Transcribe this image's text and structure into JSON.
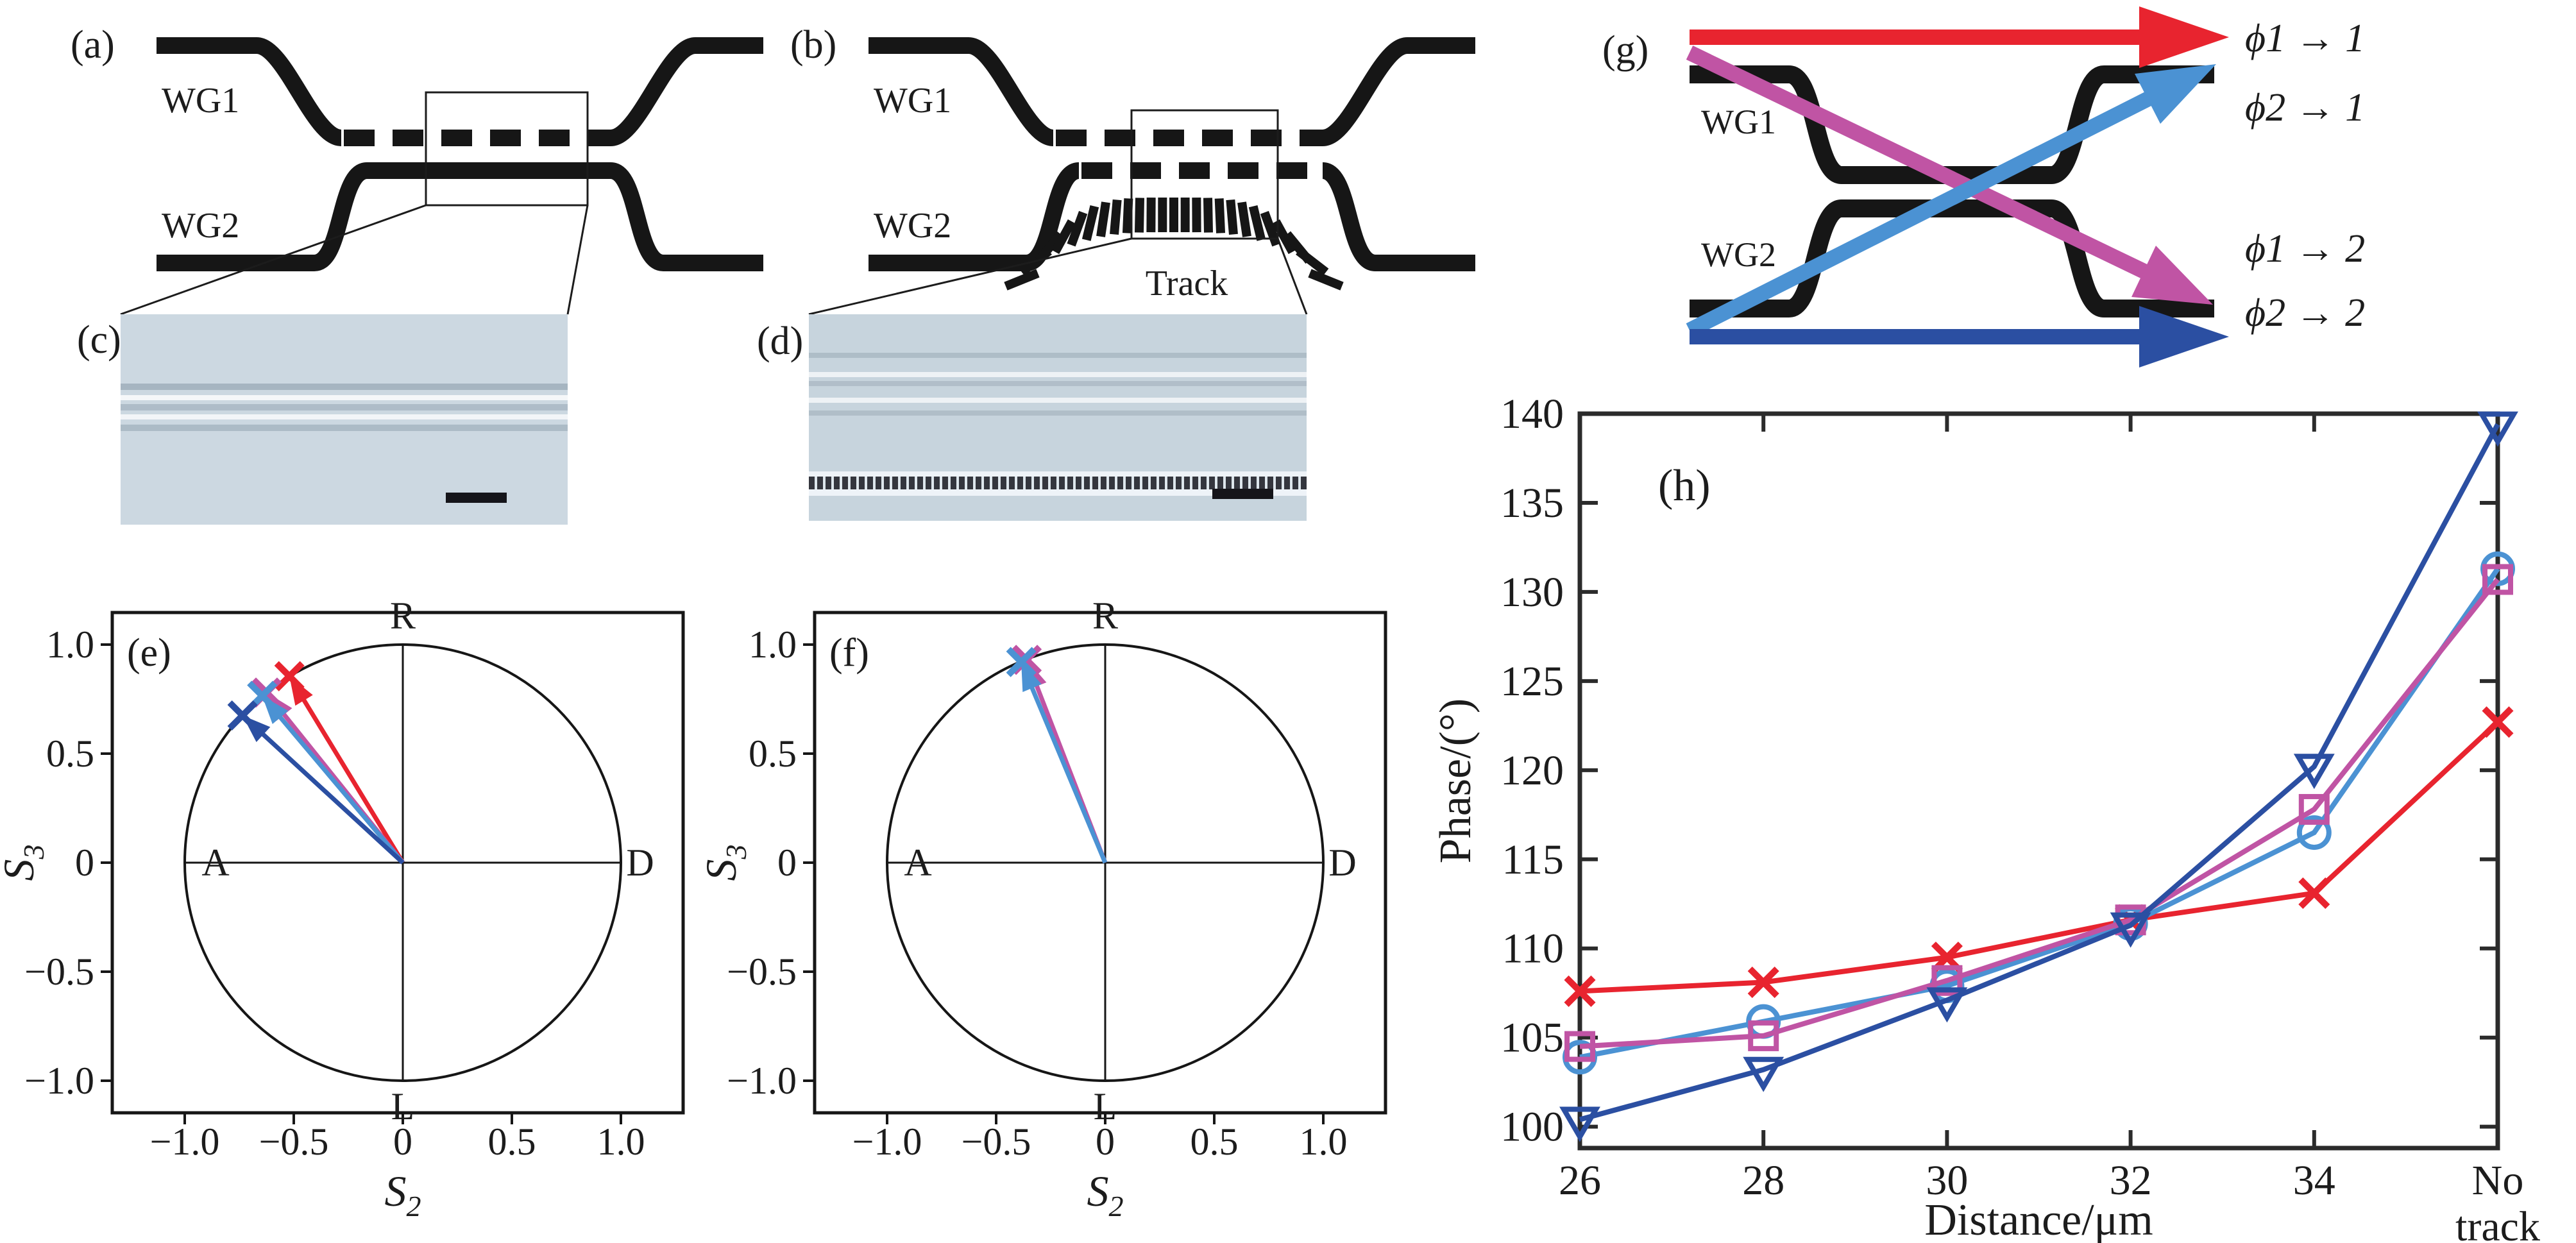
{
  "figure": {
    "type": "multi-panel scientific figure",
    "panel_letters": [
      "(a)",
      "(b)",
      "(c)",
      "(d)",
      "(e)",
      "(f)",
      "(g)",
      "(h)"
    ]
  },
  "colors": {
    "red": "#e8242f",
    "light_blue": "#4b92d3",
    "magenta": "#c054a4",
    "dark_blue": "#2b4fa2",
    "ink": "#161616",
    "frame": "#2b2b2b",
    "micrograph_c": "#ccd8e1",
    "micrograph_d": "#c7d4dd"
  },
  "panel_a": {
    "label": "(a)",
    "wg1": "WG1",
    "wg2": "WG2"
  },
  "panel_b": {
    "label": "(b)",
    "wg1": "WG1",
    "wg2": "WG2",
    "track_label": "Track"
  },
  "panel_c": {
    "label": "(c)"
  },
  "panel_d": {
    "label": "(d)"
  },
  "panel_g": {
    "label": "(g)",
    "wg1": "WG1",
    "wg2": "WG2",
    "flows": [
      {
        "label": "ϕ1 → 1",
        "color_key": "red"
      },
      {
        "label": "ϕ2 → 1",
        "color_key": "light_blue"
      },
      {
        "label": "ϕ1 → 2",
        "color_key": "magenta"
      },
      {
        "label": "ϕ2 → 2",
        "color_key": "dark_blue"
      }
    ]
  },
  "chart_data": [
    {
      "id": "panel_e",
      "type": "scatter",
      "variant": "poincare-equator-vectors",
      "title": "(e)",
      "xlabel": {
        "base": "S",
        "sub": "2"
      },
      "ylabel": {
        "base": "S",
        "sub": "3"
      },
      "xlim": [
        -1.31,
        1.31
      ],
      "ylim": [
        -1.15,
        1.15
      ],
      "xticks": {
        "values": [
          -1.0,
          -0.5,
          0,
          0.5,
          1.0
        ],
        "labels": [
          "−1.0",
          "−0.5",
          "0",
          "0.5",
          "1.0"
        ]
      },
      "yticks": {
        "values": [
          1.0,
          0.5,
          0,
          -0.5,
          -1.0
        ],
        "labels": [
          "1.0",
          "0.5",
          "0",
          "−0.5",
          "−1.0"
        ]
      },
      "pole_labels": {
        "top": "R",
        "bottom": "L",
        "left": "A",
        "right": "D"
      },
      "unit_circle": true,
      "grid": false,
      "vectors": [
        {
          "name": "phi1-to-1",
          "color_key": "red",
          "s2": -0.52,
          "s3": 0.855
        },
        {
          "name": "phi1-to-2",
          "color_key": "magenta",
          "s2": -0.625,
          "s3": 0.78
        },
        {
          "name": "phi2-to-1",
          "color_key": "light_blue",
          "s2": -0.645,
          "s3": 0.765
        },
        {
          "name": "phi2-to-2",
          "color_key": "dark_blue",
          "s2": -0.735,
          "s3": 0.675
        }
      ]
    },
    {
      "id": "panel_f",
      "type": "scatter",
      "variant": "poincare-equator-vectors",
      "title": "(f)",
      "xlabel": {
        "base": "S",
        "sub": "2"
      },
      "ylabel": {
        "base": "S",
        "sub": "3"
      },
      "xlim": [
        -1.31,
        1.31
      ],
      "ylim": [
        -1.15,
        1.15
      ],
      "xticks": {
        "values": [
          -1.0,
          -0.5,
          0,
          0.5,
          1.0
        ],
        "labels": [
          "−1.0",
          "−0.5",
          "0",
          "0.5",
          "1.0"
        ]
      },
      "yticks": {
        "values": [
          1.0,
          0.5,
          0,
          -0.5,
          -1.0
        ],
        "labels": [
          "1.0",
          "0.5",
          "0",
          "−0.5",
          "−1.0"
        ]
      },
      "pole_labels": {
        "top": "R",
        "bottom": "L",
        "left": "A",
        "right": "D"
      },
      "unit_circle": true,
      "grid": false,
      "vectors": [
        {
          "name": "phi1-to-2",
          "color_key": "magenta",
          "s2": -0.36,
          "s3": 0.93
        },
        {
          "name": "phi2-to-1",
          "color_key": "light_blue",
          "s2": -0.385,
          "s3": 0.92
        }
      ]
    },
    {
      "id": "panel_h",
      "type": "line",
      "title": "(h)",
      "xlabel": "Distance/μm",
      "ylabel": "Phase/(°)",
      "categories": [
        "26",
        "28",
        "30",
        "32",
        "34",
        "No track"
      ],
      "ylim": [
        98.8,
        140
      ],
      "yticks": [
        100,
        105,
        110,
        115,
        120,
        125,
        130,
        135,
        140
      ],
      "grid": false,
      "legend_position": "labels shown in panel (g)",
      "series": [
        {
          "name": "ϕ1 → 1",
          "color_key": "red",
          "marker": "x",
          "values": [
            107.6,
            108.1,
            109.5,
            111.6,
            113.1,
            122.7
          ]
        },
        {
          "name": "ϕ2 → 1",
          "color_key": "light_blue",
          "marker": "circle",
          "values": [
            103.9,
            105.9,
            107.9,
            111.4,
            116.5,
            131.3
          ]
        },
        {
          "name": "ϕ1 → 2",
          "color_key": "magenta",
          "marker": "square",
          "values": [
            104.5,
            105.1,
            108.2,
            111.6,
            117.8,
            130.7
          ]
        },
        {
          "name": "ϕ2 → 2",
          "color_key": "dark_blue",
          "marker": "triangle-down",
          "values": [
            100.4,
            103.2,
            107.1,
            111.3,
            120.2,
            139.4
          ]
        }
      ]
    }
  ]
}
